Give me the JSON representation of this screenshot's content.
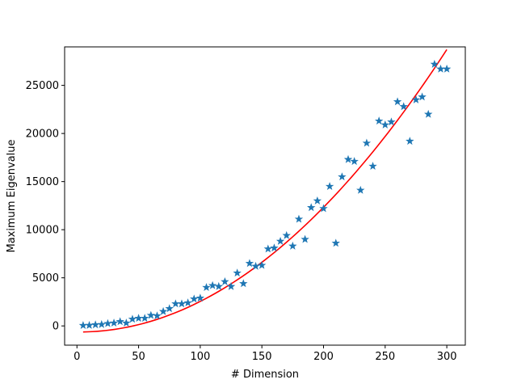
{
  "chart_data": {
    "type": "scatter",
    "title": "",
    "xlabel": "# Dimension",
    "ylabel": "Maximum Eigenvalue",
    "xlim": [
      -10,
      315
    ],
    "ylim": [
      -2000,
      29000
    ],
    "xticks": [
      0,
      50,
      100,
      150,
      200,
      250,
      300
    ],
    "yticks": [
      0,
      5000,
      10000,
      15000,
      20000,
      25000
    ],
    "grid": false,
    "legend": "none",
    "series": [
      {
        "type": "scatter",
        "marker": "star",
        "color": "#1f77b4",
        "points": [
          [
            5,
            50
          ],
          [
            10,
            60
          ],
          [
            15,
            120
          ],
          [
            20,
            150
          ],
          [
            25,
            250
          ],
          [
            30,
            300
          ],
          [
            35,
            450
          ],
          [
            40,
            300
          ],
          [
            45,
            700
          ],
          [
            50,
            800
          ],
          [
            55,
            800
          ],
          [
            60,
            1100
          ],
          [
            65,
            1050
          ],
          [
            70,
            1500
          ],
          [
            75,
            1800
          ],
          [
            80,
            2300
          ],
          [
            85,
            2300
          ],
          [
            90,
            2400
          ],
          [
            95,
            2800
          ],
          [
            100,
            2900
          ],
          [
            105,
            4000
          ],
          [
            110,
            4200
          ],
          [
            115,
            4100
          ],
          [
            120,
            4600
          ],
          [
            125,
            4100
          ],
          [
            130,
            5500
          ],
          [
            135,
            4400
          ],
          [
            140,
            6500
          ],
          [
            145,
            6200
          ],
          [
            150,
            6300
          ],
          [
            155,
            8000
          ],
          [
            160,
            8100
          ],
          [
            165,
            8800
          ],
          [
            170,
            9400
          ],
          [
            175,
            8300
          ],
          [
            180,
            11100
          ],
          [
            185,
            9000
          ],
          [
            190,
            12300
          ],
          [
            195,
            13000
          ],
          [
            200,
            12200
          ],
          [
            205,
            14500
          ],
          [
            210,
            8600
          ],
          [
            215,
            15500
          ],
          [
            220,
            17300
          ],
          [
            225,
            17100
          ],
          [
            230,
            14100
          ],
          [
            235,
            19000
          ],
          [
            240,
            16600
          ],
          [
            245,
            21300
          ],
          [
            250,
            20900
          ],
          [
            255,
            21200
          ],
          [
            260,
            23300
          ],
          [
            265,
            22800
          ],
          [
            270,
            19200
          ],
          [
            275,
            23500
          ],
          [
            280,
            23800
          ],
          [
            285,
            22000
          ],
          [
            290,
            27200
          ],
          [
            295,
            26700
          ],
          [
            300,
            26700
          ]
        ]
      },
      {
        "type": "line",
        "color": "#ff0000",
        "fit": "quadratic",
        "coefficients": [
          0.3304,
          -1.3,
          -628
        ],
        "x_range": [
          5,
          300
        ]
      }
    ]
  }
}
